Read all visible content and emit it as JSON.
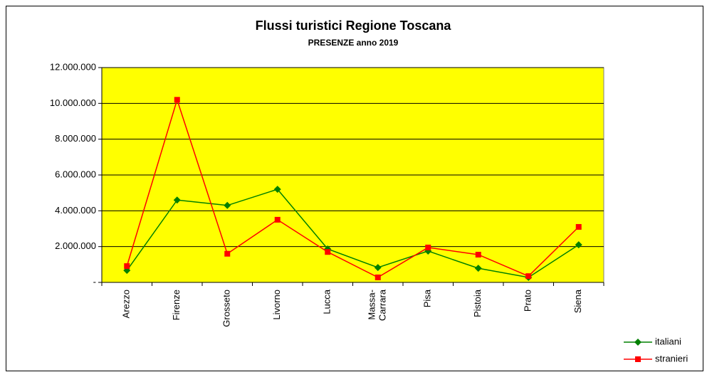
{
  "chart_data": {
    "type": "line",
    "title": "Flussi turistici Regione Toscana",
    "subtitle": "PRESENZE anno 2019",
    "categories": [
      "Arezzo",
      "Firenze",
      "Grosseto",
      "Livorno",
      "Lucca",
      "Massa-Carrara",
      "Pisa",
      "Pistoia",
      "Prato",
      "Siena"
    ],
    "series": [
      {
        "name": "italiani",
        "color": "#008000",
        "marker": "diamond",
        "values": [
          670000,
          4600000,
          4300000,
          5200000,
          1870000,
          830000,
          1750000,
          790000,
          280000,
          2100000
        ]
      },
      {
        "name": "stranieri",
        "color": "#ff0000",
        "marker": "square",
        "values": [
          910000,
          10200000,
          1600000,
          3500000,
          1700000,
          280000,
          1950000,
          1550000,
          350000,
          3100000
        ]
      }
    ],
    "ylim": [
      0,
      12000000
    ],
    "yticks": [
      {
        "value": 0,
        "label": "-"
      },
      {
        "value": 2000000,
        "label": "2.000.000"
      },
      {
        "value": 4000000,
        "label": "4.000.000"
      },
      {
        "value": 6000000,
        "label": "6.000.000"
      },
      {
        "value": 8000000,
        "label": "8.000.000"
      },
      {
        "value": 10000000,
        "label": "10.000.000"
      },
      {
        "value": 12000000,
        "label": "12.000.000"
      }
    ],
    "grid": true,
    "plot_background": "#ffff00",
    "legend": "bottom-right"
  }
}
